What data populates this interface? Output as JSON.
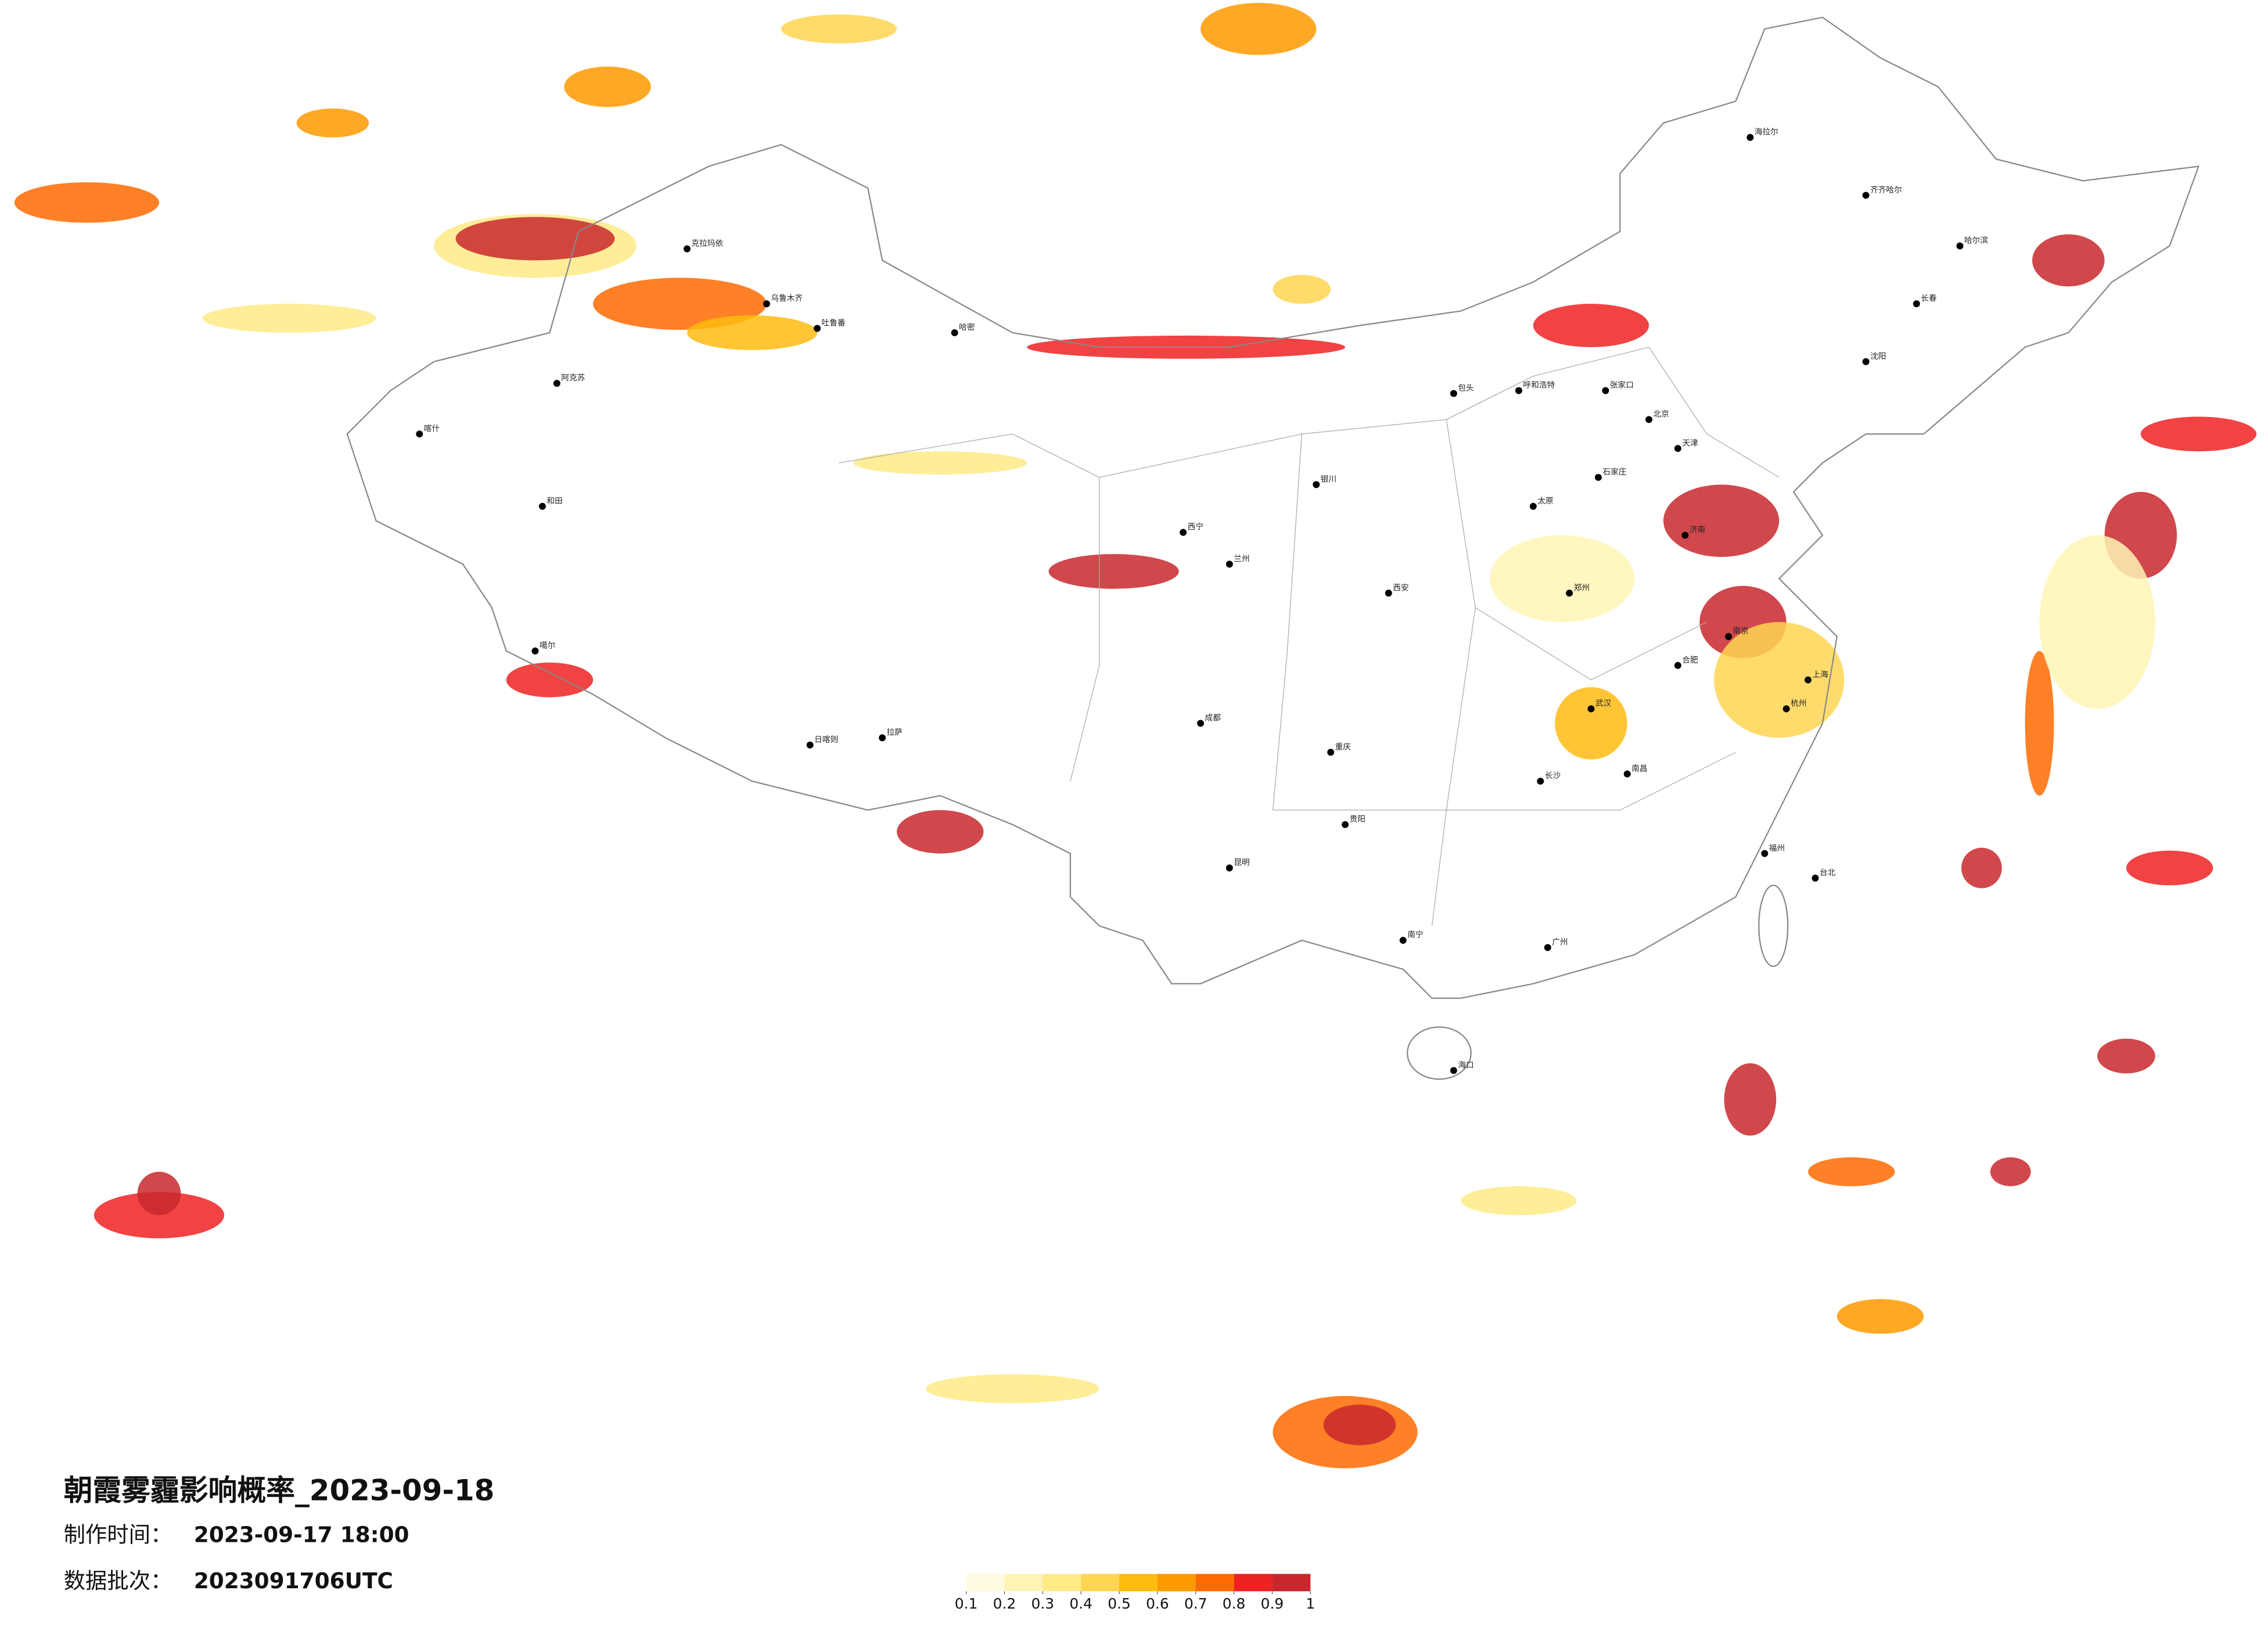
{
  "title": "朝霞雾霾影响概率_2023-09-18",
  "production_time": {
    "label": "制作时间：",
    "value": "2023-09-17 18:00"
  },
  "data_batch": {
    "label": "数据批次：",
    "value": "2023091706UTC"
  },
  "legend": {
    "ticks": [
      0.1,
      0.2,
      0.3,
      0.4,
      0.5,
      0.6,
      0.7,
      0.8,
      0.9,
      1
    ],
    "colors": [
      "#fffbe0",
      "#fff4b5",
      "#ffea85",
      "#ffd552",
      "#ffbb10",
      "#ff9900",
      "#ff6a00",
      "#ee2222",
      "#c8282d"
    ]
  },
  "cities": [
    "克拉玛依",
    "乌鲁木齐",
    "吐鲁番",
    "哈密",
    "阿克苏",
    "喀什",
    "和田",
    "拉萨",
    "日喀则",
    "噶尔",
    "呼和浩特",
    "包头",
    "张家口",
    "北京",
    "天津",
    "石家庄",
    "太原",
    "西安",
    "兰州",
    "西宁",
    "银川",
    "成都",
    "重庆",
    "贵阳",
    "昆明",
    "南宁",
    "广州",
    "长沙",
    "武汉",
    "南昌",
    "合肥",
    "南京",
    "上海",
    "杭州",
    "福州",
    "台北",
    "济南",
    "沈阳",
    "长春",
    "哈尔滨",
    "海口",
    "郑州",
    "海拉尔",
    "齐齐哈尔"
  ]
}
